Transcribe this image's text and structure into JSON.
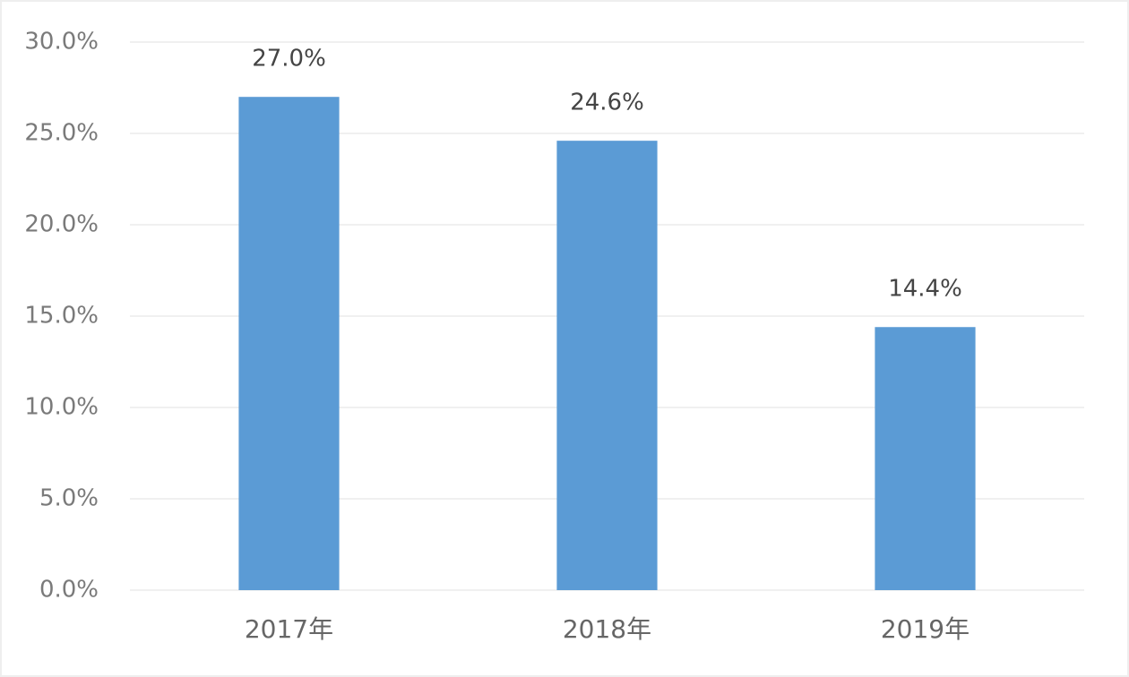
{
  "chart_data": {
    "type": "bar",
    "categories": [
      "2017年",
      "2018年",
      "2019年"
    ],
    "values": [
      27.0,
      24.6,
      14.4
    ],
    "value_labels": [
      "27.0%",
      "24.6%",
      "14.4%"
    ],
    "color": "#5b9bd5",
    "ylim": [
      0,
      30
    ],
    "yticks": [
      {
        "value": 0,
        "label": "0.0%"
      },
      {
        "value": 5,
        "label": "5.0%"
      },
      {
        "value": 10,
        "label": "10.0%"
      },
      {
        "value": 15,
        "label": "15.0%"
      },
      {
        "value": 20,
        "label": "20.0%"
      },
      {
        "value": 25,
        "label": "25.0%"
      },
      {
        "value": 30,
        "label": "30.0%"
      }
    ],
    "grid": true
  }
}
